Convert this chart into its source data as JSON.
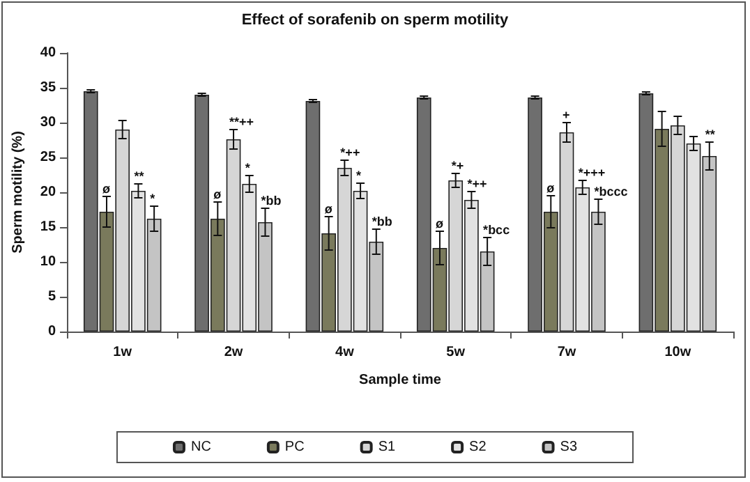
{
  "chart_data": {
    "type": "bar",
    "title": "Effect of sorafenib on sperm motility",
    "xlabel": "Sample time",
    "ylabel": "Sperm motility (%)",
    "categories": [
      "1w",
      "2w",
      "4w",
      "5w",
      "7w",
      "10w"
    ],
    "series": [
      {
        "name": "NC",
        "color": "#6e6e6e",
        "values": [
          34.5,
          34,
          33.1,
          33.6,
          33.6,
          34.2
        ],
        "errors": [
          0.2,
          0.2,
          0.2,
          0.2,
          0.2,
          0.2
        ]
      },
      {
        "name": "PC",
        "color": "#7a7a5c",
        "values": [
          17.2,
          16.2,
          14.1,
          12.0,
          17.2,
          29.1
        ],
        "errors": [
          2.2,
          2.4,
          2.4,
          2.4,
          2.3,
          2.5
        ],
        "value_labels": [
          "ø",
          "ø",
          "ø",
          "ø",
          "ø",
          null
        ]
      },
      {
        "name": "S1",
        "color": "#d6d6d6",
        "values": [
          29.0,
          27.6,
          23.5,
          21.7,
          28.6,
          29.6
        ],
        "errors": [
          1.3,
          1.4,
          1.1,
          1.0,
          1.4,
          1.3
        ],
        "value_labels": [
          null,
          "**++",
          "*++",
          "*+",
          "+",
          null
        ]
      },
      {
        "name": "S2",
        "color": "#e2e2e2",
        "values": [
          20.2,
          21.2,
          20.2,
          18.9,
          20.7,
          27.0
        ],
        "errors": [
          1.0,
          1.2,
          1.1,
          1.2,
          1.0,
          1.0
        ],
        "value_labels": [
          "**",
          "*",
          "*",
          "*++",
          "*+++",
          null
        ]
      },
      {
        "name": "S3",
        "color": "#c4c4c4",
        "values": [
          16.2,
          15.7,
          12.9,
          11.5,
          17.2,
          25.2
        ],
        "errors": [
          1.8,
          2.0,
          1.8,
          2.0,
          1.8,
          2.0
        ],
        "value_labels": [
          "*",
          "*bb",
          "*bb",
          "*bcc",
          "*bccc",
          "**"
        ]
      }
    ],
    "ylim": [
      0,
      40
    ],
    "yticks": [
      0,
      5,
      10,
      15,
      20,
      25,
      30,
      35,
      40
    ],
    "grid": false,
    "legend": "bottom"
  }
}
